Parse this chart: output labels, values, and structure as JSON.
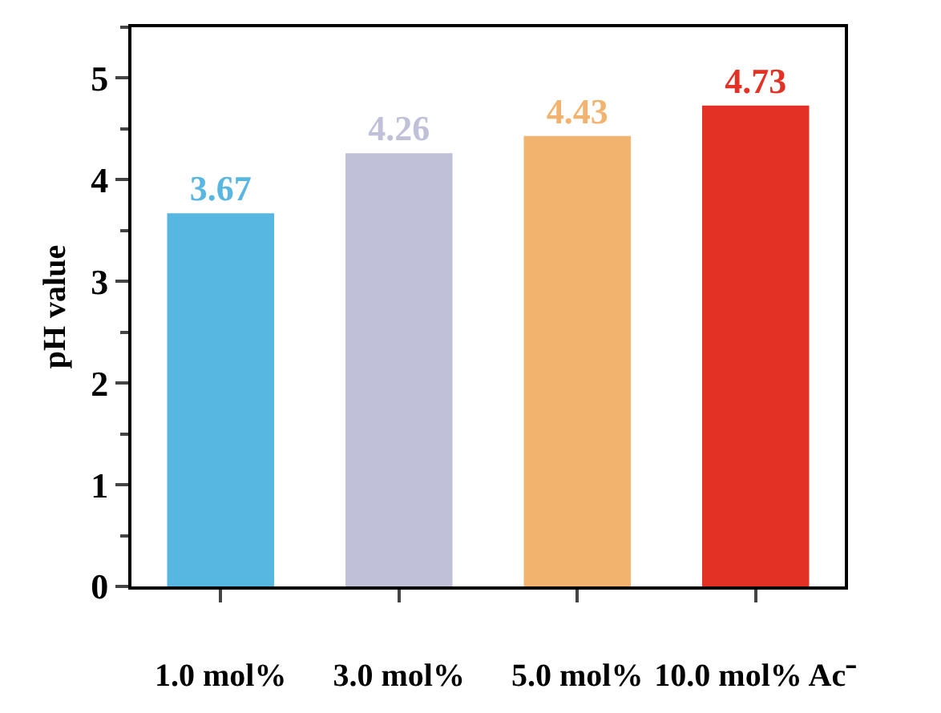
{
  "chart_data": {
    "type": "bar",
    "ylabel": "pH value",
    "categories": [
      "1.0 mol%",
      "3.0 mol%",
      "5.0 mol%",
      "10.0 mol% Ac⁻"
    ],
    "values": [
      3.67,
      4.26,
      4.43,
      4.73
    ],
    "colors": [
      "#58b7e1",
      "#c0c0d8",
      "#f2b36f",
      "#e33225"
    ],
    "data_labels": true,
    "ylim": [
      0,
      5.5
    ],
    "yticks": [
      0,
      1,
      2,
      3,
      4,
      5
    ]
  }
}
